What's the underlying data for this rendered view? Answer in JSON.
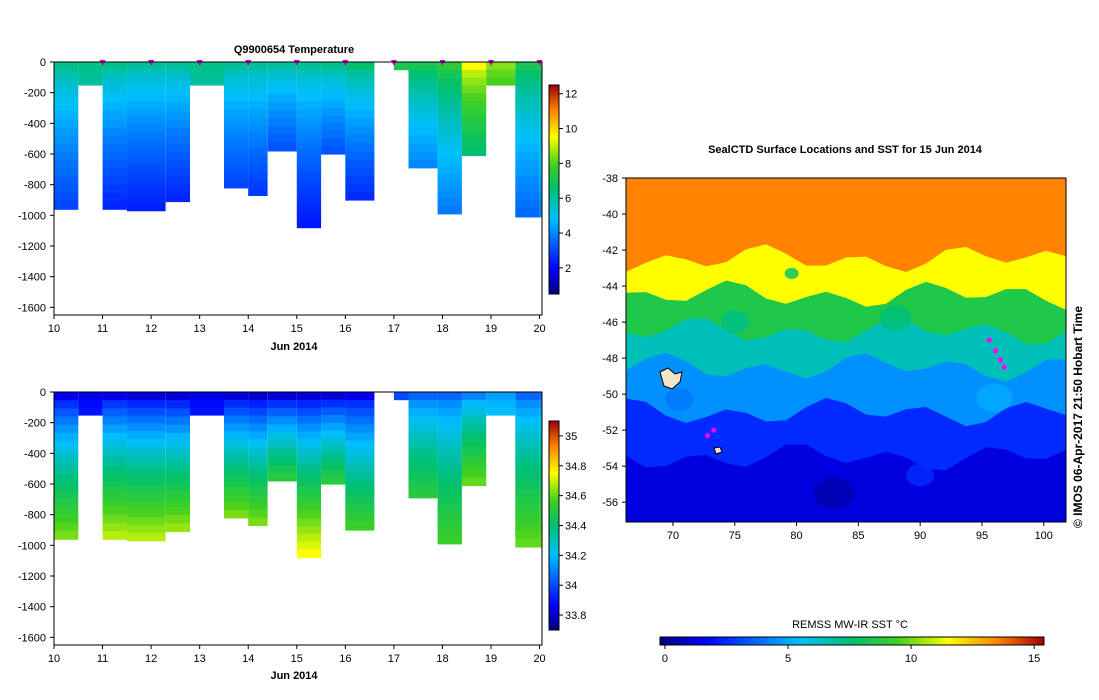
{
  "chart_data": [
    {
      "type": "heatmap",
      "title": "Q9900654  Temperature",
      "xlabel": "Jun 2014",
      "ylabel": "",
      "x_ticks": [
        "10",
        "11",
        "12",
        "13",
        "14",
        "15",
        "16",
        "17",
        "18",
        "19",
        "20"
      ],
      "x_range": [
        10,
        20.05
      ],
      "y_ticks": [
        "0",
        "-200",
        "-400",
        "-600",
        "-800",
        "-1000",
        "-1200",
        "-1400",
        "-1600"
      ],
      "y_range": [
        -1650,
        0
      ],
      "colorbar": {
        "ticks": [
          "2",
          "4",
          "6",
          "8",
          "10",
          "12"
        ],
        "range": [
          0.5,
          12.5
        ]
      },
      "profile_marker_days": [
        11,
        12,
        13,
        14,
        15,
        16,
        17,
        18,
        19,
        20
      ],
      "profiles": [
        {
          "x0": 10.0,
          "x1": 10.5,
          "max_depth": -960,
          "shallow": 6.2,
          "deep": 3.0
        },
        {
          "x0": 10.5,
          "x1": 11.0,
          "max_depth": -150,
          "shallow": 6.2,
          "deep": 6.0
        },
        {
          "x0": 11.0,
          "x1": 11.5,
          "max_depth": -960,
          "shallow": 6.2,
          "deep": 2.5
        },
        {
          "x0": 11.5,
          "x1": 12.3,
          "max_depth": -970,
          "shallow": 6.0,
          "deep": 2.4
        },
        {
          "x0": 12.3,
          "x1": 12.8,
          "max_depth": -910,
          "shallow": 6.0,
          "deep": 2.5
        },
        {
          "x0": 12.8,
          "x1": 13.5,
          "max_depth": -150,
          "shallow": 6.2,
          "deep": 6.0
        },
        {
          "x0": 13.5,
          "x1": 14.0,
          "max_depth": -820,
          "shallow": 6.0,
          "deep": 3.0
        },
        {
          "x0": 14.0,
          "x1": 14.4,
          "max_depth": -870,
          "shallow": 6.0,
          "deep": 2.8
        },
        {
          "x0": 14.4,
          "x1": 15.0,
          "max_depth": -580,
          "shallow": 6.0,
          "deep": 3.2
        },
        {
          "x0": 15.0,
          "x1": 15.5,
          "max_depth": -1080,
          "shallow": 6.0,
          "deep": 2.3
        },
        {
          "x0": 15.5,
          "x1": 16.0,
          "max_depth": -600,
          "shallow": 6.2,
          "deep": 3.2
        },
        {
          "x0": 16.0,
          "x1": 16.6,
          "max_depth": -900,
          "shallow": 6.5,
          "deep": 2.6
        },
        {
          "x0": 17.0,
          "x1": 17.3,
          "max_depth": -50,
          "shallow": 7.2,
          "deep": 7.0
        },
        {
          "x0": 17.3,
          "x1": 17.9,
          "max_depth": -690,
          "shallow": 7.0,
          "deep": 4.0
        },
        {
          "x0": 17.9,
          "x1": 18.4,
          "max_depth": -990,
          "shallow": 7.5,
          "deep": 3.8
        },
        {
          "x0": 18.4,
          "x1": 18.9,
          "max_depth": -610,
          "shallow": 9.5,
          "deep": 6.5
        },
        {
          "x0": 18.9,
          "x1": 19.5,
          "max_depth": -150,
          "shallow": 8.5,
          "deep": 8.0
        },
        {
          "x0": 19.5,
          "x1": 20.0,
          "max_depth": -1010,
          "shallow": 7.0,
          "deep": 3.5
        },
        {
          "x0": 20.0,
          "x1": 20.05,
          "max_depth": -1010,
          "shallow": 7.2,
          "deep": 4.0
        }
      ]
    },
    {
      "type": "heatmap",
      "title": "",
      "xlabel": "Jun 2014",
      "ylabel": "",
      "x_ticks": [
        "10",
        "11",
        "12",
        "13",
        "14",
        "15",
        "16",
        "17",
        "18",
        "19",
        "20"
      ],
      "x_range": [
        10,
        20.05
      ],
      "y_ticks": [
        "0",
        "-200",
        "-400",
        "-600",
        "-800",
        "-1000",
        "-1200",
        "-1400",
        "-1600"
      ],
      "y_range": [
        -1650,
        0
      ],
      "colorbar": {
        "ticks": [
          "33.8",
          "34",
          "34.2",
          "34.4",
          "34.6",
          "34.8",
          "35"
        ],
        "range": [
          33.7,
          35.1
        ]
      },
      "profiles": [
        {
          "x0": 10.0,
          "x1": 10.5,
          "max_depth": -960,
          "shallow": 33.85,
          "deep": 34.62
        },
        {
          "x0": 10.5,
          "x1": 11.0,
          "max_depth": -150,
          "shallow": 33.85,
          "deep": 33.9
        },
        {
          "x0": 11.0,
          "x1": 11.5,
          "max_depth": -960,
          "shallow": 33.85,
          "deep": 34.68
        },
        {
          "x0": 11.5,
          "x1": 12.3,
          "max_depth": -970,
          "shallow": 33.82,
          "deep": 34.68
        },
        {
          "x0": 12.3,
          "x1": 12.8,
          "max_depth": -910,
          "shallow": 33.82,
          "deep": 34.65
        },
        {
          "x0": 12.8,
          "x1": 13.5,
          "max_depth": -150,
          "shallow": 33.85,
          "deep": 33.9
        },
        {
          "x0": 13.5,
          "x1": 14.0,
          "max_depth": -820,
          "shallow": 33.82,
          "deep": 34.62
        },
        {
          "x0": 14.0,
          "x1": 14.4,
          "max_depth": -870,
          "shallow": 33.8,
          "deep": 34.62
        },
        {
          "x0": 14.4,
          "x1": 15.0,
          "max_depth": -580,
          "shallow": 33.82,
          "deep": 34.5
        },
        {
          "x0": 15.0,
          "x1": 15.5,
          "max_depth": -1080,
          "shallow": 33.82,
          "deep": 34.75
        },
        {
          "x0": 15.5,
          "x1": 16.0,
          "max_depth": -600,
          "shallow": 33.82,
          "deep": 34.5
        },
        {
          "x0": 16.0,
          "x1": 16.6,
          "max_depth": -900,
          "shallow": 33.85,
          "deep": 34.55
        },
        {
          "x0": 17.0,
          "x1": 17.3,
          "max_depth": -50,
          "shallow": 34.0,
          "deep": 34.0
        },
        {
          "x0": 17.3,
          "x1": 17.9,
          "max_depth": -690,
          "shallow": 34.05,
          "deep": 34.5
        },
        {
          "x0": 17.9,
          "x1": 18.4,
          "max_depth": -990,
          "shallow": 34.05,
          "deep": 34.55
        },
        {
          "x0": 18.4,
          "x1": 18.9,
          "max_depth": -610,
          "shallow": 34.1,
          "deep": 34.6
        },
        {
          "x0": 18.9,
          "x1": 19.5,
          "max_depth": -150,
          "shallow": 34.15,
          "deep": 34.2
        },
        {
          "x0": 19.5,
          "x1": 20.0,
          "max_depth": -1010,
          "shallow": 34.05,
          "deep": 34.6
        },
        {
          "x0": 20.0,
          "x1": 20.05,
          "max_depth": -1010,
          "shallow": 34.05,
          "deep": 34.6
        }
      ]
    },
    {
      "type": "heatmap",
      "title": "SealCTD Surface Locations and SST for 15 Jun 2014",
      "xlabel": "",
      "ylabel": "",
      "x_ticks": [
        "70",
        "75",
        "80",
        "85",
        "90",
        "95",
        "100"
      ],
      "x_range": [
        66.2,
        101.8
      ],
      "y_ticks": [
        "-38",
        "-40",
        "-42",
        "-44",
        "-46",
        "-48",
        "-50",
        "-52",
        "-54",
        "-56"
      ],
      "y_range": [
        -57.1,
        -38
      ],
      "colorbar": {
        "label": "REMSS MW-IR SST °C",
        "ticks": [
          "0",
          "5",
          "10",
          "15"
        ],
        "range": [
          -0.2,
          15.4
        ]
      },
      "sst_bands": [
        {
          "lat_north": -38.0,
          "lat_south": -42.5,
          "sst": 13.5
        },
        {
          "lat_north": -42.5,
          "lat_south": -44.5,
          "sst": 11.5
        },
        {
          "lat_north": -44.5,
          "lat_south": -46.5,
          "sst": 8.5
        },
        {
          "lat_north": -46.5,
          "lat_south": -48.5,
          "sst": 6.5
        },
        {
          "lat_north": -48.5,
          "lat_south": -51.0,
          "sst": 4.5
        },
        {
          "lat_north": -51.0,
          "lat_south": -53.5,
          "sst": 2.5
        },
        {
          "lat_north": -53.5,
          "lat_south": -57.1,
          "sst": 1.2
        }
      ],
      "seal_locations": [
        {
          "lon": 95.6,
          "lat": -47.0
        },
        {
          "lon": 96.1,
          "lat": -47.6
        },
        {
          "lon": 96.5,
          "lat": -48.1
        },
        {
          "lon": 96.8,
          "lat": -48.5
        },
        {
          "lon": 72.8,
          "lat": -52.3
        },
        {
          "lon": 73.3,
          "lat": -52.0
        }
      ]
    }
  ],
  "footer_credit": "© IMOS 06-Apr-2017 21:50 Hobart Time"
}
